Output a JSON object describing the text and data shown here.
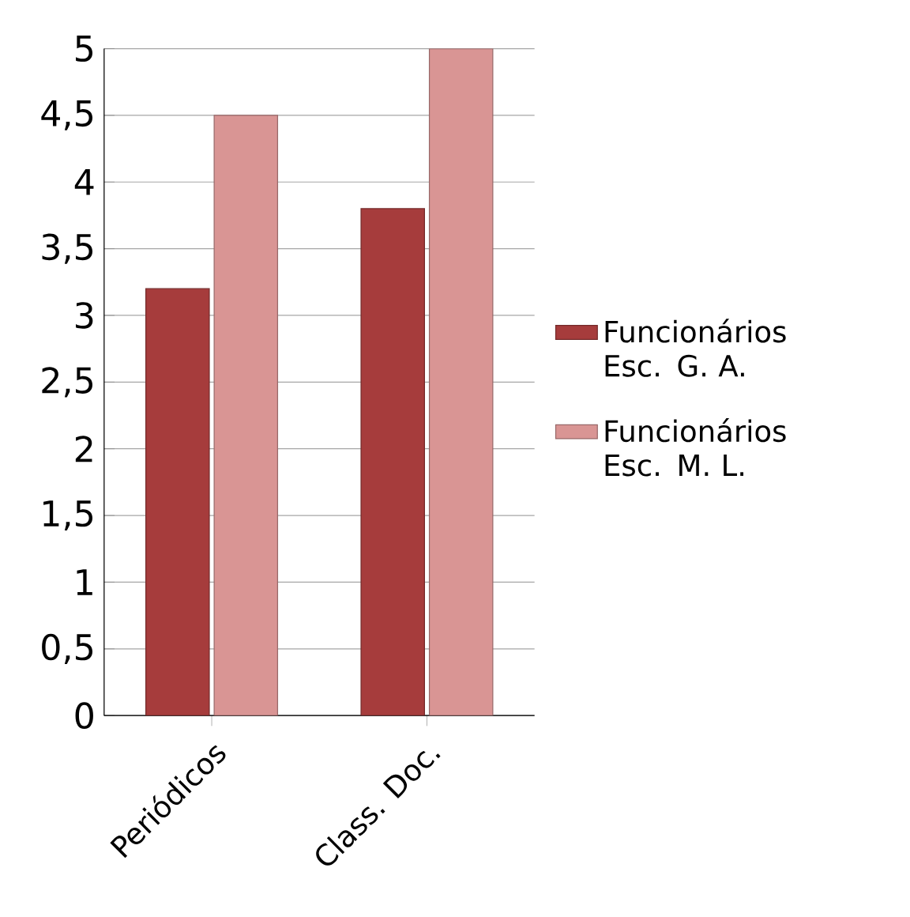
{
  "chart_data": {
    "type": "bar",
    "categories": [
      "Periódicos",
      "Class. Doc."
    ],
    "series": [
      {
        "name": "Funcionários Esc. G. A.",
        "color": "#a63c3c",
        "values": [
          3.2,
          3.8
        ]
      },
      {
        "name": "Funcionários Esc. M. L.",
        "color": "#d99594",
        "values": [
          4.5,
          5.0
        ]
      }
    ],
    "ylim": [
      0,
      5
    ],
    "yticks": [
      0,
      {
        "value": 0.5,
        "label": "0,5"
      },
      1,
      {
        "value": 1.5,
        "label": "1,5"
      },
      2,
      {
        "value": 2.5,
        "label": "2,5"
      },
      3,
      {
        "value": 3.5,
        "label": "3,5"
      },
      4,
      {
        "value": 4.5,
        "label": "4,5"
      },
      5
    ],
    "grid": "y",
    "legend": "right"
  }
}
